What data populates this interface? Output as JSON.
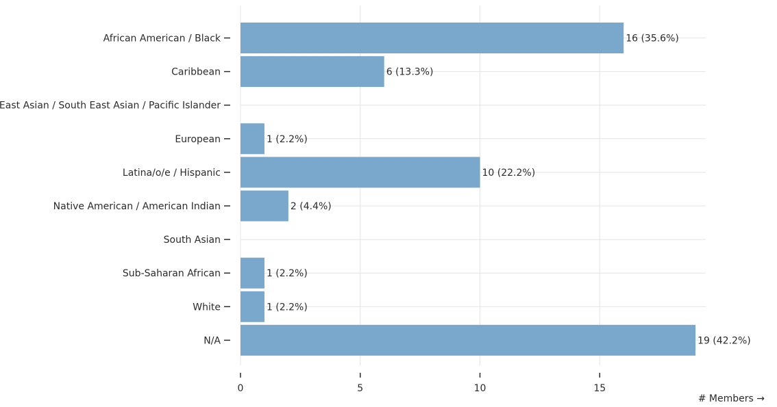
{
  "chart_data": {
    "type": "bar",
    "orientation": "horizontal",
    "categories": [
      "African American / Black",
      "Caribbean",
      "East Asian / South East Asian / Pacific Islander",
      "European",
      "Latina/o/e / Hispanic",
      "Native American / American Indian",
      "South Asian",
      "Sub-Saharan African",
      "White",
      "N/A"
    ],
    "values": [
      16,
      6,
      0,
      1,
      10,
      2,
      0,
      1,
      1,
      19
    ],
    "data_labels": [
      "16 (35.6%)",
      "6 (13.3%)",
      "",
      "1 (2.2%)",
      "10 (22.2%)",
      "2 (4.4%)",
      "",
      "1 (2.2%)",
      "1 (2.2%)",
      "19 (42.2%)"
    ],
    "x_ticks": [
      "0",
      "5",
      "10",
      "15"
    ],
    "x_tick_values": [
      0,
      5,
      10,
      15
    ],
    "xlim": [
      0,
      19
    ],
    "xlabel": "# Members →",
    "ylabel": "",
    "title": "",
    "grid": true,
    "colors": {
      "bar": "#7aa8cd",
      "grid": "#e4e4e4",
      "text": "#2b2b2b"
    }
  }
}
